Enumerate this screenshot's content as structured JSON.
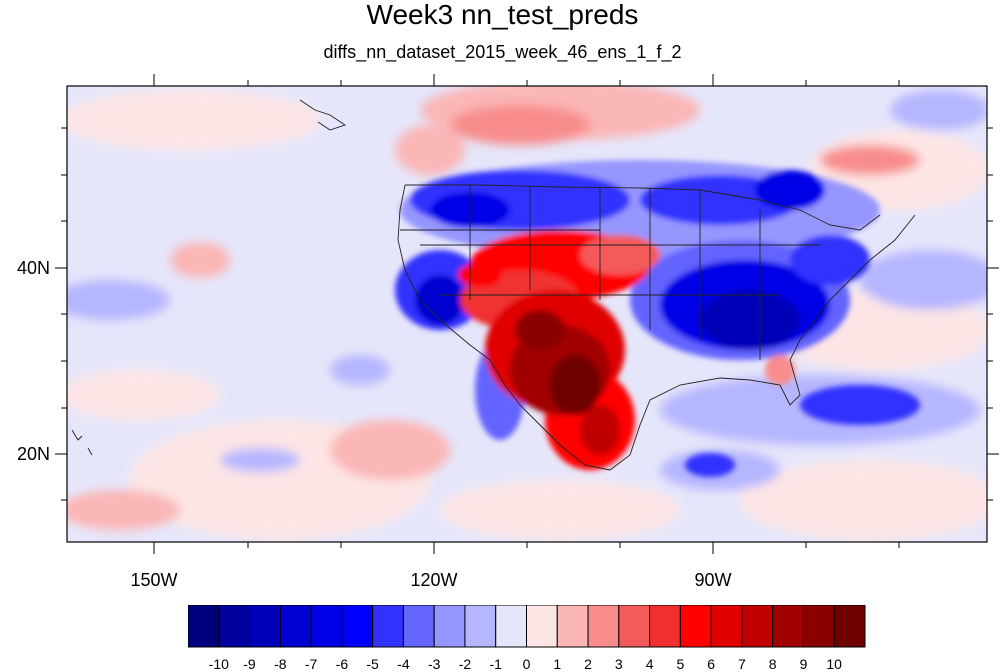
{
  "title": "Week3 nn_test_preds",
  "subtitle": "diffs_nn_dataset_2015_week_46_ens_1_f_2",
  "axes": {
    "x_ticks": [
      "150W",
      "120W",
      "90W"
    ],
    "y_ticks": [
      "40N",
      "20N"
    ]
  },
  "colorbar": {
    "labels": [
      "-10",
      "-9",
      "-8",
      "-7",
      "-6",
      "-5",
      "-4",
      "-3",
      "-2",
      "-1",
      "0",
      "1",
      "2",
      "3",
      "4",
      "5",
      "6",
      "7",
      "8",
      "9",
      "10"
    ],
    "colors": [
      "#00007f",
      "#00009e",
      "#0000b8",
      "#0000d0",
      "#0000e6",
      "#0000ff",
      "#3232ff",
      "#6464ff",
      "#9696ff",
      "#b6b6ff",
      "#e6e6fa",
      "#fde5e5",
      "#fbb6b6",
      "#f88c8c",
      "#f45a5a",
      "#f03030",
      "#ff0000",
      "#e00000",
      "#c00000",
      "#a00000",
      "#8a0000",
      "#6e0000"
    ]
  }
}
